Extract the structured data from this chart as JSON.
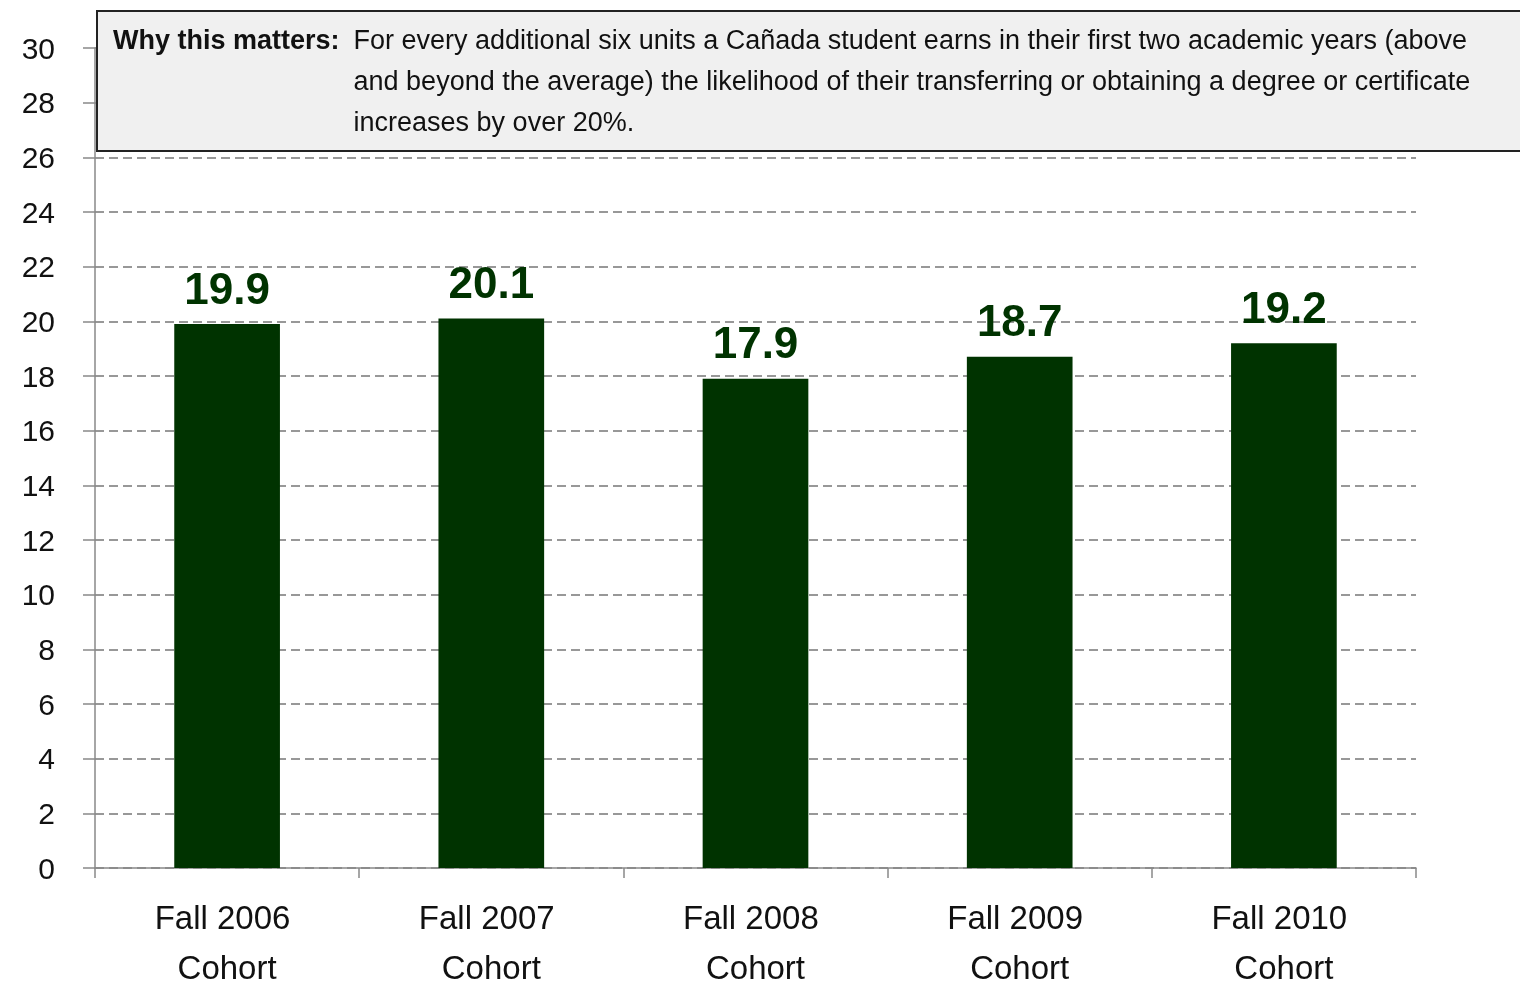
{
  "chart_data": {
    "type": "bar",
    "categories": [
      "Fall 2006 Cohort",
      "Fall 2007 Cohort",
      "Fall 2008 Cohort",
      "Fall 2009 Cohort",
      "Fall 2010 Cohort"
    ],
    "values": [
      19.9,
      20.1,
      17.9,
      18.7,
      19.2
    ],
    "color": "#003300",
    "ylim": [
      0,
      30
    ],
    "yticks": [
      0,
      2,
      4,
      6,
      8,
      10,
      12,
      14,
      16,
      18,
      20,
      22,
      24,
      26,
      28,
      30
    ],
    "grid": "y",
    "data_labels": true,
    "annotations": [
      "Why this matters:",
      "For every additional six units a Cañada student earns in their first two academic years (above and beyond the average) the likelihood of their transferring or obtaining a degree or certificate increases by over 20%."
    ]
  }
}
